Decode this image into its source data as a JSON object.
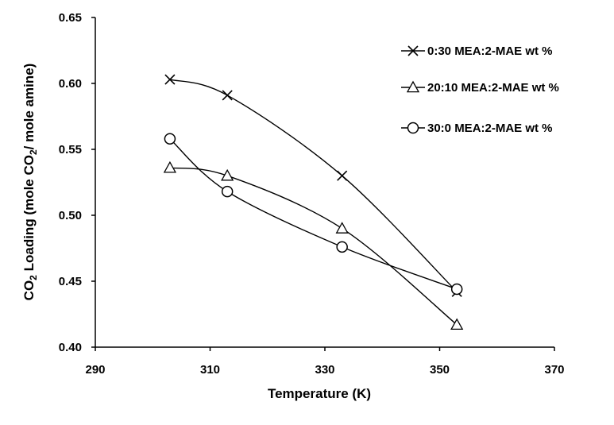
{
  "chart_data": {
    "type": "line",
    "xlabel": "Temperature (K)",
    "ylabel": {
      "prefix": "CO",
      "sub1": "2",
      "middle": " Loading (mole CO",
      "sub2": "2",
      "suffix": "/ mole amine)"
    },
    "xlim": [
      290,
      370
    ],
    "ylim": [
      0.4,
      0.65
    ],
    "xticks": [
      "290",
      "310",
      "330",
      "350",
      "370"
    ],
    "yticks": [
      "0.40",
      "0.45",
      "0.50",
      "0.55",
      "0.60",
      "0.65"
    ],
    "grid": false,
    "legend_position": "top-right",
    "series": [
      {
        "name": "0:30 MEA:2-MAE wt %",
        "marker": "x",
        "x": [
          303,
          313,
          333,
          353
        ],
        "y": [
          0.603,
          0.591,
          0.53,
          0.442
        ]
      },
      {
        "name": "20:10 MEA:2-MAE wt %",
        "marker": "triangle",
        "x": [
          303,
          313,
          333,
          353
        ],
        "y": [
          0.536,
          0.53,
          0.49,
          0.417
        ]
      },
      {
        "name": "30:0 MEA:2-MAE wt %",
        "marker": "circle",
        "x": [
          303,
          313,
          333,
          353
        ],
        "y": [
          0.558,
          0.518,
          0.476,
          0.444
        ]
      }
    ]
  }
}
